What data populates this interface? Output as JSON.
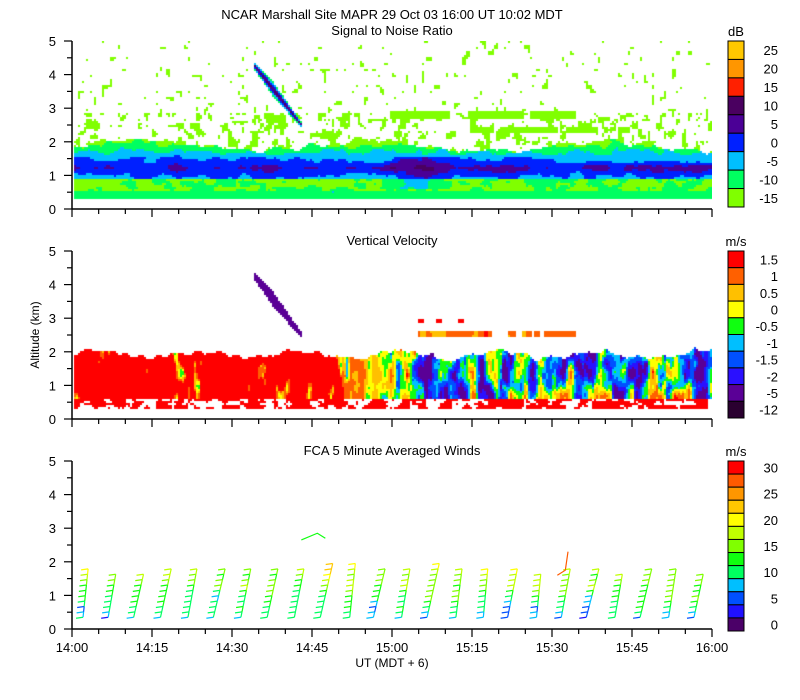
{
  "header": {
    "title": "NCAR Marshall Site  MAPR 29 Oct 03  16:00 UT  10:02  MDT"
  },
  "chart_data": [
    {
      "type": "heatmap",
      "id": "snr",
      "title": "Signal to Noise Ratio",
      "ylabel": "",
      "ylim": [
        0,
        5
      ],
      "yticks": [
        "0",
        "1",
        "2",
        "3",
        "4",
        "5"
      ],
      "xlim_minutes_after_1400": [
        0,
        120
      ],
      "colorbar": {
        "unit": "dB",
        "labels": [
          "25",
          "20",
          "15",
          "10",
          "5",
          "0",
          "-5",
          "-10",
          "-15"
        ],
        "colors": [
          "#ffc800",
          "#ff9600",
          "#ff2000",
          "#4a0060",
          "#4b0096",
          "#0020ff",
          "#00bfff",
          "#00ff60",
          "#80ff00"
        ]
      },
      "features": [
        {
          "name": "boundary layer echo",
          "time": "14:00-16:00",
          "altitude_km": [
            0.3,
            2.2
          ],
          "dB_range": [
            -15,
            5
          ]
        },
        {
          "name": "strong core",
          "time": "15:00-15:10",
          "altitude_km": [
            0.7,
            1.6
          ],
          "dB": 5
        },
        {
          "name": "descending echo",
          "time": "14:35-14:44",
          "altitude_km": [
            2.6,
            4.2
          ],
          "dB": 10
        },
        {
          "name": "elevated layer",
          "time": "15:00-15:45",
          "altitude_km": [
            2.3,
            3.0
          ],
          "dB": -15
        }
      ]
    },
    {
      "type": "heatmap",
      "id": "vv",
      "title": "Vertical Velocity",
      "ylabel": "Altitude (km)",
      "ylim": [
        0,
        5
      ],
      "yticks": [
        "0",
        "1",
        "2",
        "3",
        "4",
        "5"
      ],
      "xlim_minutes_after_1400": [
        0,
        120
      ],
      "colorbar": {
        "unit": "m/s",
        "labels": [
          "1.5",
          "1",
          "0.5",
          "0",
          "-0.5",
          "-1",
          "-1.5",
          "-2",
          "-5",
          "-12"
        ],
        "colors": [
          "#ff0000",
          "#ff6000",
          "#ffc000",
          "#ffff00",
          "#10ff10",
          "#00bfff",
          "#0050ff",
          "#2a10ff",
          "#5a0096",
          "#2a0030"
        ]
      },
      "features": [
        {
          "name": "updrafts",
          "time": "14:00-14:55",
          "altitude_km": [
            0.3,
            2.1
          ],
          "m_s": 1.5
        },
        {
          "name": "mixed up/down",
          "time": "14:55-16:00",
          "altitude_km": [
            0.3,
            2.0
          ],
          "m_s_range": [
            -5,
            1.5
          ]
        },
        {
          "name": "descending echo",
          "time": "14:35-14:44",
          "altitude_km": [
            2.6,
            4.2
          ],
          "m_s": -5
        }
      ]
    },
    {
      "type": "barbs",
      "id": "winds",
      "title": "FCA 5 Minute Averaged Winds",
      "ylim": [
        0,
        5
      ],
      "yticks": [
        "0",
        "1",
        "2",
        "3",
        "4",
        "5"
      ],
      "xticks": [
        "14:00",
        "14:15",
        "14:30",
        "14:45",
        "15:00",
        "15:15",
        "15:30",
        "15:45",
        "16:00"
      ],
      "xlabel": "UT  (MDT + 6)",
      "colorbar": {
        "unit": "m/s",
        "labels": [
          "30",
          "25",
          "20",
          "15",
          "10",
          "5",
          "0"
        ],
        "colors": [
          "#ff0000",
          "#ff5a00",
          "#ff9600",
          "#ffc800",
          "#ffff00",
          "#c0ff00",
          "#80ff00",
          "#10ff10",
          "#00ff60",
          "#00bfff",
          "#0050ff",
          "#2010ff",
          "#4b0068"
        ]
      },
      "interval_minutes": 5,
      "altitude_range_km": [
        0.3,
        2.0
      ],
      "speed_range_m_s": [
        3,
        28
      ]
    }
  ]
}
